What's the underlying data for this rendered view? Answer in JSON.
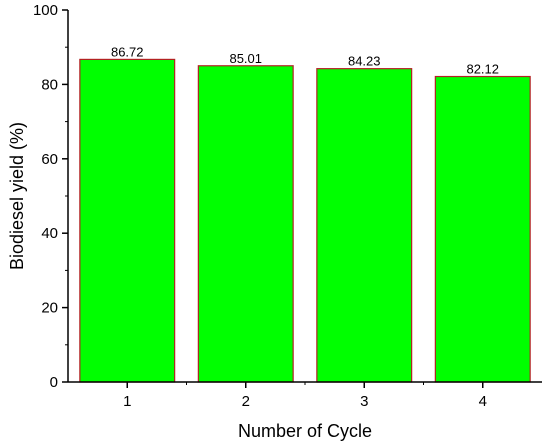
{
  "chart_data": {
    "type": "bar",
    "categories": [
      "1",
      "2",
      "3",
      "4"
    ],
    "values": [
      86.72,
      85.01,
      84.23,
      82.12
    ],
    "data_labels": [
      "86.72",
      "85.01",
      "84.23",
      "82.12"
    ],
    "xlabel": "Number of Cycle",
    "ylabel": "Biodiesel yield (%)",
    "ylim": [
      0,
      100
    ],
    "yticks": [
      0,
      20,
      40,
      60,
      80,
      100
    ],
    "ytick_labels": [
      "0",
      "20",
      "40",
      "60",
      "80",
      "100"
    ],
    "grid": false,
    "colors": {
      "bar_fill": "#00ff00",
      "bar_edge": "#b22222",
      "axis": "#000000"
    }
  }
}
